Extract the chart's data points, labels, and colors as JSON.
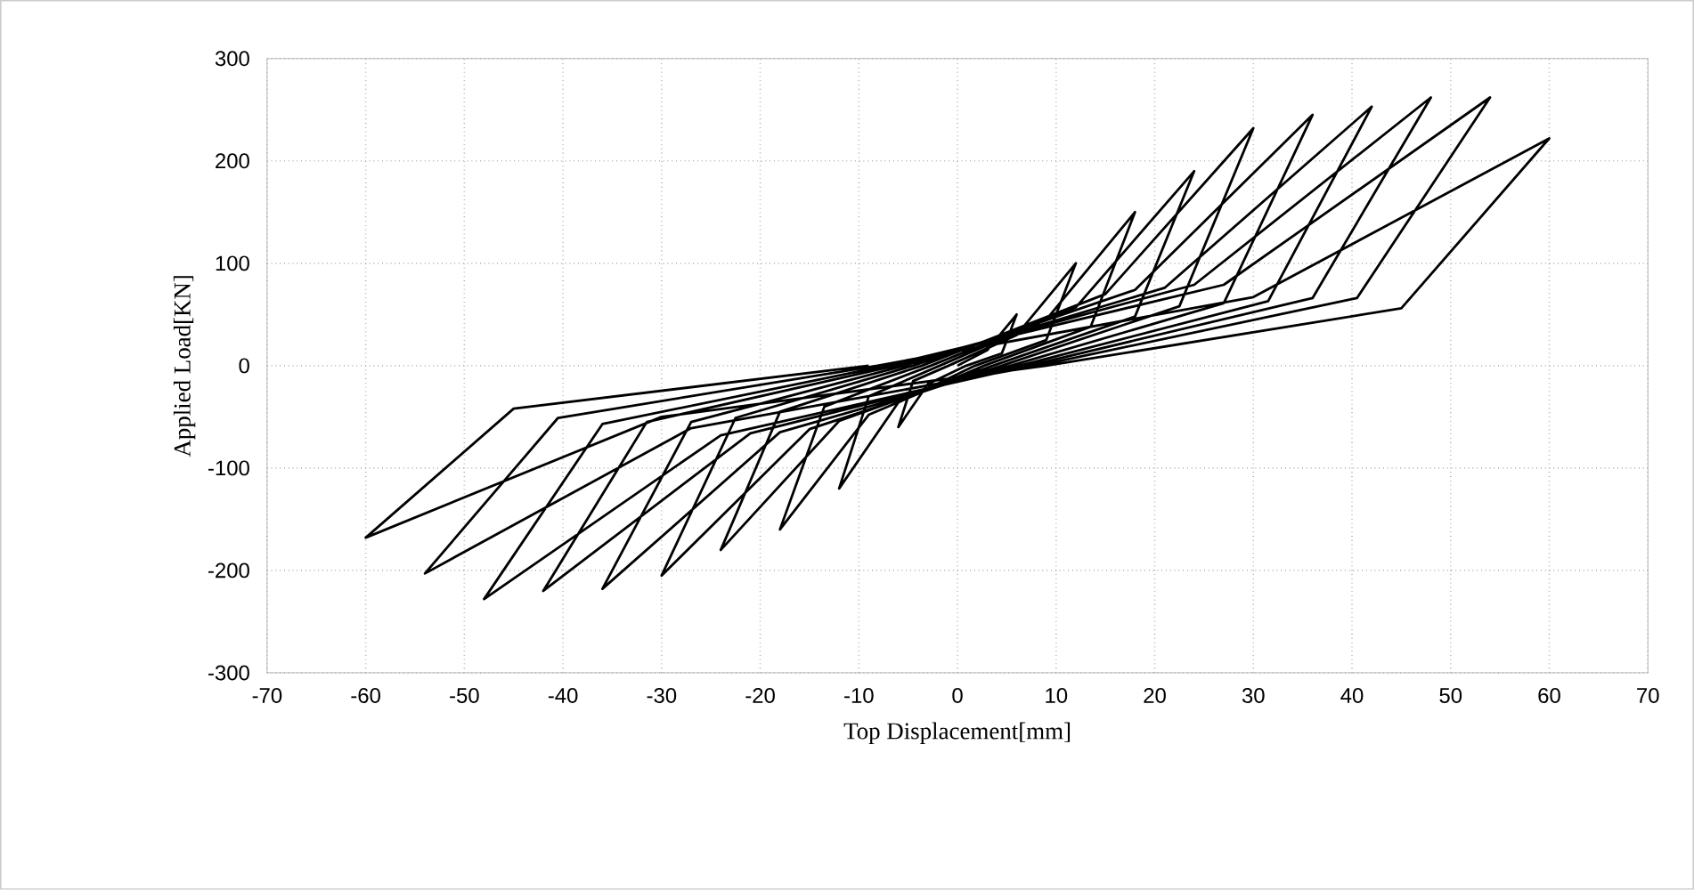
{
  "chart_data": {
    "type": "line",
    "xlabel": "Top Displacement[mm]",
    "ylabel": "Applied Load[KN]",
    "xlim": [
      -70,
      70
    ],
    "ylim": [
      -300,
      300
    ],
    "xticks": [
      -70,
      -60,
      -50,
      -40,
      -30,
      -20,
      -10,
      0,
      10,
      20,
      30,
      40,
      50,
      60,
      70
    ],
    "yticks": [
      -300,
      -200,
      -100,
      0,
      100,
      200,
      300
    ],
    "grid": true,
    "series": [
      {
        "color": "#000000",
        "x": [
          0,
          3,
          6,
          4.5,
          0.9,
          -3,
          -6,
          -4.5,
          -0.9,
          6,
          12,
          9,
          1.8,
          -6,
          -12,
          -9,
          -1.8,
          9,
          18,
          13.5,
          2.7,
          -9,
          -18,
          -13.5,
          -2.7,
          12,
          24,
          18,
          3.6,
          -12,
          -24,
          -18,
          -3.6,
          15,
          30,
          22.5,
          4.5,
          -15,
          -30,
          -22.5,
          -4.5,
          18,
          36,
          27,
          5.4,
          -18,
          -36,
          -27,
          -5.4,
          21,
          42,
          31.5,
          6.3,
          -21,
          -42,
          -31.5,
          -6.3,
          24,
          48,
          36,
          7.2,
          -24,
          -48,
          -36,
          -7.2,
          27,
          54,
          40.5,
          8.1,
          -27,
          -54,
          -40.5,
          -8.1,
          30,
          60,
          45,
          9,
          -30,
          -60,
          -45,
          -9
        ],
        "values": [
          0,
          15,
          50,
          12,
          0,
          -18,
          -60,
          -15,
          0,
          30,
          100,
          25,
          0,
          -36,
          -120,
          -30,
          0,
          45,
          150,
          38,
          0,
          -48,
          -160,
          -40,
          0,
          57,
          190,
          48,
          0,
          -54,
          -180,
          -45,
          0,
          70,
          232,
          58,
          0,
          -62,
          -205,
          -51,
          0,
          74,
          245,
          61,
          0,
          -65,
          -218,
          -55,
          0,
          76,
          253,
          63,
          0,
          -66,
          -220,
          -55,
          0,
          79,
          262,
          66,
          0,
          -68,
          -228,
          -57,
          0,
          79,
          262,
          66,
          0,
          -61,
          -203,
          -51,
          0,
          67,
          222,
          56,
          0,
          -50,
          -168,
          -42,
          0
        ]
      }
    ]
  }
}
